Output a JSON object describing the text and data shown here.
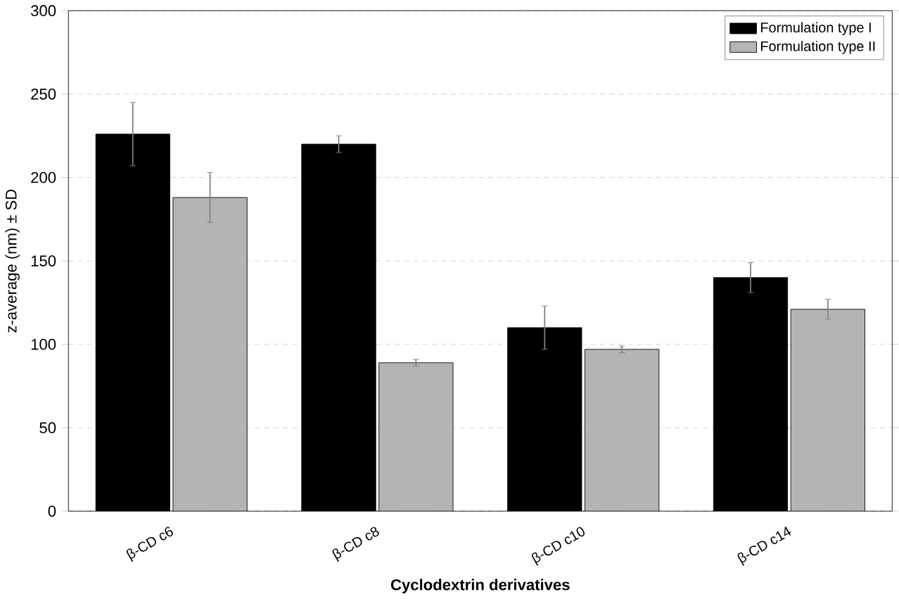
{
  "chart_data": {
    "type": "bar",
    "xlabel": "Cyclodextrin derivatives",
    "ylabel": "z-average (nm) ± SD",
    "categories": [
      "β-CD c6",
      "β-CD c8",
      "β-CD c10",
      "β-CD c14"
    ],
    "series": [
      {
        "name": "Formulation type I",
        "color": "#000000",
        "values": [
          226,
          220,
          110,
          140
        ],
        "errors": [
          19,
          5,
          13,
          9
        ]
      },
      {
        "name": "Formulation type II",
        "color": "#b4b4b4",
        "values": [
          188,
          89,
          97,
          121
        ],
        "errors": [
          15,
          2,
          2,
          6
        ]
      }
    ],
    "ylim": [
      0,
      300
    ],
    "yticks": [
      0,
      50,
      100,
      150,
      200,
      250,
      300
    ],
    "grid": "y",
    "legend": "top right"
  }
}
